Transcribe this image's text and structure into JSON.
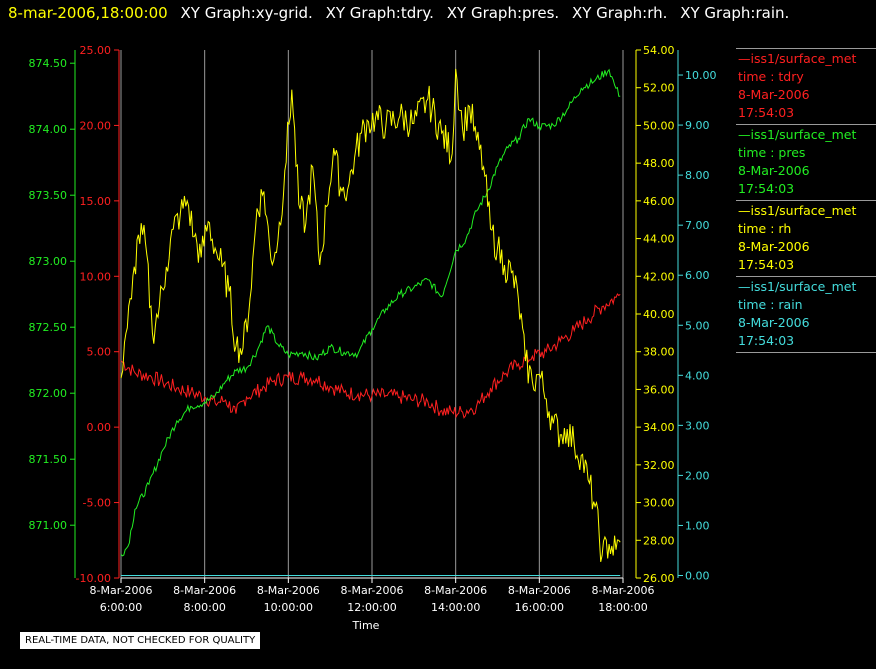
{
  "header": {
    "timestamp": "8-mar-2006,18:00:00",
    "graph_titles": [
      "XY Graph:xy-grid.",
      "XY Graph:tdry.",
      "XY Graph:pres.",
      "XY Graph:rh.",
      "XY Graph:rain."
    ]
  },
  "colors": {
    "tdry": "#ff2020",
    "pres": "#22ee22",
    "rh": "#ffff00",
    "rain": "#44dddd",
    "grid": "#9a9a9a",
    "background": "#000000"
  },
  "legend": [
    {
      "source": "iss1/surface_met",
      "variable": "time : tdry",
      "date": "8-Mar-2006",
      "time": "17:54:03"
    },
    {
      "source": "iss1/surface_met",
      "variable": "time : pres",
      "date": "8-Mar-2006",
      "time": "17:54:03"
    },
    {
      "source": "iss1/surface_met",
      "variable": "time : rh",
      "date": "8-Mar-2006",
      "time": "17:54:03"
    },
    {
      "source": "iss1/surface_met",
      "variable": "time : rain",
      "date": "8-Mar-2006",
      "time": "17:54:03"
    }
  ],
  "notice": "REAL-TIME DATA, NOT CHECKED FOR QUALITY",
  "chart_data": {
    "type": "line",
    "xlabel": "Time",
    "x_ticks": [
      {
        "date": "8-Mar-2006",
        "time": "6:00:00"
      },
      {
        "date": "8-Mar-2006",
        "time": "8:00:00"
      },
      {
        "date": "8-Mar-2006",
        "time": "10:00:00"
      },
      {
        "date": "8-Mar-2006",
        "time": "12:00:00"
      },
      {
        "date": "8-Mar-2006",
        "time": "14:00:00"
      },
      {
        "date": "8-Mar-2006",
        "time": "16:00:00"
      },
      {
        "date": "8-Mar-2006",
        "time": "18:00:00"
      }
    ],
    "xlim": [
      "06:00",
      "18:00"
    ],
    "grid": "vertical",
    "legend_placement": "right",
    "axes": {
      "tdry": {
        "ylim": [
          -10,
          25
        ],
        "ticks": [
          "-10.00",
          "-5.00",
          "0.00",
          "5.00",
          "10.00",
          "15.00",
          "20.00",
          "25.00"
        ],
        "side": "left-inner",
        "color": "#ff2020"
      },
      "pres": {
        "ylim": [
          870.6,
          874.6
        ],
        "ticks": [
          "871.00",
          "871.50",
          "872.00",
          "872.50",
          "873.00",
          "873.50",
          "874.00",
          "874.50"
        ],
        "side": "left-outer",
        "color": "#22ee22"
      },
      "rh": {
        "ylim": [
          26,
          54
        ],
        "ticks": [
          "26.00",
          "28.00",
          "30.00",
          "32.00",
          "34.00",
          "36.00",
          "38.00",
          "40.00",
          "42.00",
          "44.00",
          "46.00",
          "48.00",
          "50.00",
          "52.00",
          "54.00"
        ],
        "side": "right-inner",
        "color": "#ffff00"
      },
      "rain": {
        "ylim": [
          -0.05,
          10.5
        ],
        "ticks": [
          "0.00",
          "1.00",
          "2.00",
          "3.00",
          "4.00",
          "5.00",
          "6.00",
          "7.00",
          "8.00",
          "9.00",
          "10.00"
        ],
        "side": "right-outer",
        "color": "#44dddd"
      }
    },
    "series": [
      {
        "name": "tdry",
        "x": [
          "06:00",
          "06:20",
          "06:40",
          "07:00",
          "07:20",
          "07:40",
          "08:00",
          "08:15",
          "08:30",
          "08:45",
          "09:00",
          "09:20",
          "09:40",
          "10:00",
          "10:20",
          "10:40",
          "11:00",
          "11:20",
          "11:40",
          "12:00",
          "12:20",
          "12:40",
          "13:00",
          "13:20",
          "13:40",
          "13:55",
          "14:10",
          "14:30",
          "14:50",
          "15:10",
          "15:30",
          "15:50",
          "16:10",
          "16:30",
          "16:50",
          "17:10",
          "17:30",
          "17:50",
          "17:56"
        ],
        "y": [
          4.4,
          3.6,
          3.4,
          3.0,
          2.6,
          2.3,
          2.0,
          1.6,
          1.8,
          0.9,
          2.0,
          2.5,
          3.1,
          3.3,
          3.3,
          3.2,
          2.7,
          2.3,
          2.2,
          2.1,
          2.1,
          2.0,
          1.8,
          1.7,
          1.1,
          1.0,
          1.0,
          1.4,
          2.6,
          3.5,
          4.2,
          4.7,
          5.0,
          5.7,
          6.4,
          7.2,
          8.0,
          8.6,
          8.8
        ]
      },
      {
        "name": "pres",
        "x": [
          "06:00",
          "06:10",
          "06:20",
          "06:40",
          "07:00",
          "07:20",
          "07:40",
          "08:00",
          "08:15",
          "08:30",
          "08:45",
          "09:00",
          "09:15",
          "09:30",
          "09:45",
          "10:00",
          "10:20",
          "10:40",
          "11:00",
          "11:20",
          "11:40",
          "12:00",
          "12:20",
          "12:40",
          "13:00",
          "13:20",
          "13:40",
          "14:00",
          "14:15",
          "14:30",
          "14:45",
          "15:00",
          "15:15",
          "15:30",
          "15:45",
          "16:00",
          "16:20",
          "16:40",
          "17:00",
          "17:20",
          "17:40",
          "17:50",
          "17:56"
        ],
        "y": [
          870.78,
          870.84,
          871.12,
          871.31,
          871.57,
          871.79,
          871.9,
          871.93,
          871.98,
          872.09,
          872.17,
          872.19,
          872.32,
          872.51,
          872.37,
          872.29,
          872.31,
          872.26,
          872.35,
          872.31,
          872.3,
          872.49,
          872.64,
          872.75,
          872.8,
          872.86,
          872.73,
          873.08,
          873.17,
          873.38,
          873.52,
          873.72,
          873.86,
          873.93,
          874.08,
          874.02,
          874.03,
          874.15,
          874.31,
          874.37,
          874.45,
          874.31,
          874.25
        ]
      },
      {
        "name": "rh",
        "x": [
          "06:00",
          "06:05",
          "06:15",
          "06:25",
          "06:35",
          "06:45",
          "06:55",
          "07:05",
          "07:15",
          "07:25",
          "07:35",
          "07:45",
          "07:55",
          "08:05",
          "08:15",
          "08:25",
          "08:35",
          "08:45",
          "08:55",
          "09:05",
          "09:15",
          "09:25",
          "09:35",
          "09:45",
          "09:55",
          "10:05",
          "10:15",
          "10:25",
          "10:35",
          "10:45",
          "10:55",
          "11:05",
          "11:15",
          "11:25",
          "11:35",
          "11:45",
          "11:55",
          "12:05",
          "12:20",
          "12:40",
          "13:00",
          "13:20",
          "13:40",
          "13:55",
          "14:00",
          "14:10",
          "14:20",
          "14:30",
          "14:40",
          "14:50",
          "15:00",
          "15:10",
          "15:20",
          "15:30",
          "15:40",
          "15:50",
          "16:00",
          "16:10",
          "16:20",
          "16:30",
          "16:40",
          "16:50",
          "17:00",
          "17:10",
          "17:20",
          "17:30",
          "17:40",
          "17:50",
          "17:56"
        ],
        "y": [
          36.6,
          38.5,
          40.8,
          44.2,
          43.8,
          39.0,
          40.4,
          42.5,
          44.5,
          45.3,
          46.0,
          44.1,
          43.0,
          44.9,
          43.5,
          42.5,
          41.2,
          38.3,
          38.2,
          40.8,
          45.6,
          46.5,
          42.9,
          43.9,
          47.6,
          51.9,
          45.8,
          44.8,
          47.8,
          42.6,
          45.7,
          48.8,
          46.7,
          46.6,
          48.3,
          49.6,
          50.2,
          50.4,
          50.0,
          50.5,
          50.1,
          51.4,
          49.6,
          48.5,
          53.0,
          49.8,
          51.0,
          49.2,
          47.8,
          44.5,
          43.5,
          42.6,
          42.2,
          40.8,
          37.5,
          36.4,
          36.8,
          35.5,
          34.2,
          33.6,
          33.9,
          33.1,
          32.5,
          31.2,
          29.8,
          27.2,
          27.8,
          27.5,
          27.9
        ]
      },
      {
        "name": "rain",
        "x": [
          "06:00",
          "17:56"
        ],
        "y": [
          0.0,
          0.0
        ]
      }
    ]
  }
}
